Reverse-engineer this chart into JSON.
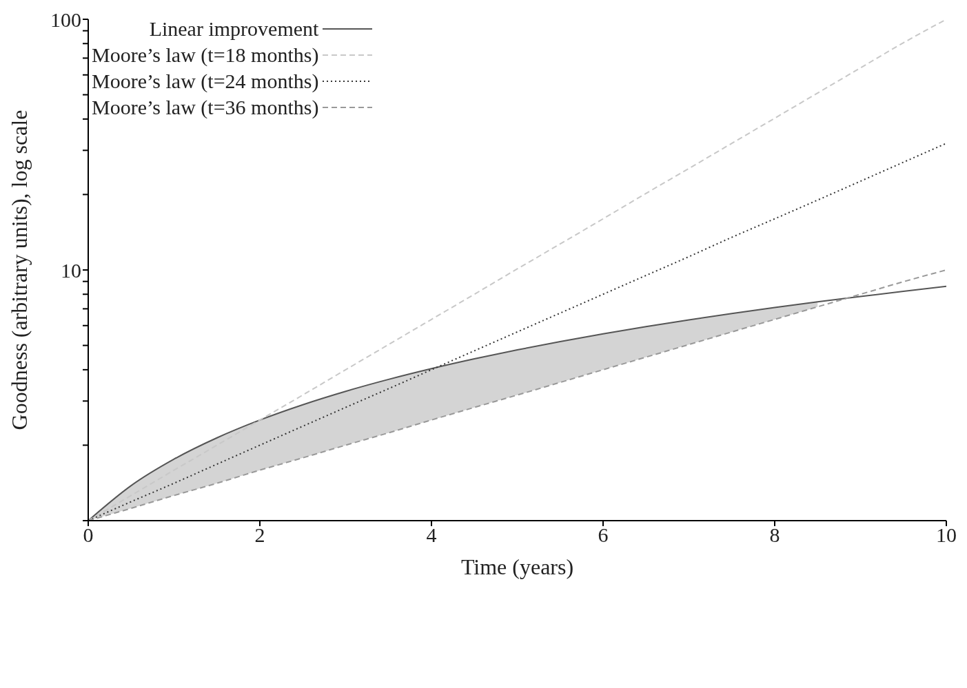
{
  "chart_data": {
    "type": "line",
    "xlabel": "Time (years)",
    "ylabel": "Goodness (arbitrary units), log scale",
    "log": "y",
    "grid": false,
    "legend": "top left",
    "marker": "none",
    "x": [
      0,
      0.5,
      1,
      1.5,
      2,
      2.5,
      3,
      3.5,
      4,
      4.5,
      5,
      5.5,
      6,
      6.5,
      7,
      7.5,
      8,
      8.5,
      9,
      9.5,
      10
    ],
    "xlim": [
      0,
      10
    ],
    "xticks": [
      0,
      2,
      4,
      6,
      8,
      10
    ],
    "ylim": [
      1,
      100
    ],
    "yticks": [
      {
        "value": 1,
        "label": null
      },
      {
        "value": 2,
        "label": null
      },
      {
        "value": 3,
        "label": null
      },
      {
        "value": 4,
        "label": null
      },
      {
        "value": 5,
        "label": null
      },
      {
        "value": 6,
        "label": null
      },
      {
        "value": 7,
        "label": null
      },
      {
        "value": 8,
        "label": null
      },
      {
        "value": 9,
        "label": null
      },
      10,
      {
        "value": 20,
        "label": null
      },
      {
        "value": 30,
        "label": null
      },
      {
        "value": 40,
        "label": null
      },
      {
        "value": 50,
        "label": null
      },
      {
        "value": 60,
        "label": null
      },
      {
        "value": 70,
        "label": null
      },
      {
        "value": 80,
        "label": null
      },
      {
        "value": 90,
        "label": null
      },
      100
    ],
    "series": [
      {
        "name": "Linear improvement",
        "color": "#555555",
        "line_style": "solid",
        "values": [
          1,
          1.38,
          1.76,
          2.14,
          2.52,
          2.9,
          3.28,
          3.66,
          4.04,
          4.42,
          4.8,
          5.18,
          5.56,
          5.94,
          6.32,
          6.7,
          7.08,
          7.46,
          7.84,
          8.22,
          8.6
        ]
      },
      {
        "name": "Moore’s law (t=18 months)",
        "color": "#c8c8c8",
        "line_style": "dashed",
        "values": [
          1,
          1.26,
          1.59,
          2,
          2.52,
          3.17,
          4,
          5.04,
          6.35,
          8,
          10.1,
          12.7,
          16,
          20.2,
          25.4,
          32,
          40.3,
          50.8,
          64,
          80.6,
          100
        ]
      },
      {
        "name": "Moore’s law (t=24 months)",
        "color": "#333333",
        "line_style": "dotted",
        "values": [
          1,
          1.19,
          1.41,
          1.68,
          2,
          2.38,
          2.83,
          3.36,
          4,
          4.76,
          5.66,
          6.73,
          8,
          9.51,
          11.3,
          13.5,
          16,
          19,
          22.6,
          26.9,
          32
        ]
      },
      {
        "name": "Moore’s law (t=36 months)",
        "color": "#999999",
        "line_style": "dashed",
        "values": [
          1,
          1.12,
          1.26,
          1.41,
          1.59,
          1.78,
          2,
          2.24,
          2.52,
          2.83,
          3.17,
          3.56,
          4,
          4.49,
          5.04,
          5.66,
          6.35,
          7.13,
          8,
          8.98,
          10
        ],
        "lower": [
          1,
          1.12,
          1.26,
          1.41,
          1.59,
          1.78,
          2,
          2.24,
          2.52,
          2.83,
          3.17,
          3.56,
          4,
          4.49,
          5.04,
          5.66,
          6.35,
          7.13,
          null,
          null,
          null
        ],
        "upper": [
          1,
          1.38,
          1.76,
          2.14,
          2.52,
          2.9,
          3.28,
          3.66,
          4.04,
          4.42,
          4.8,
          5.18,
          5.56,
          5.94,
          6.32,
          6.7,
          7.08,
          7.46,
          null,
          null,
          null
        ]
      }
    ]
  }
}
